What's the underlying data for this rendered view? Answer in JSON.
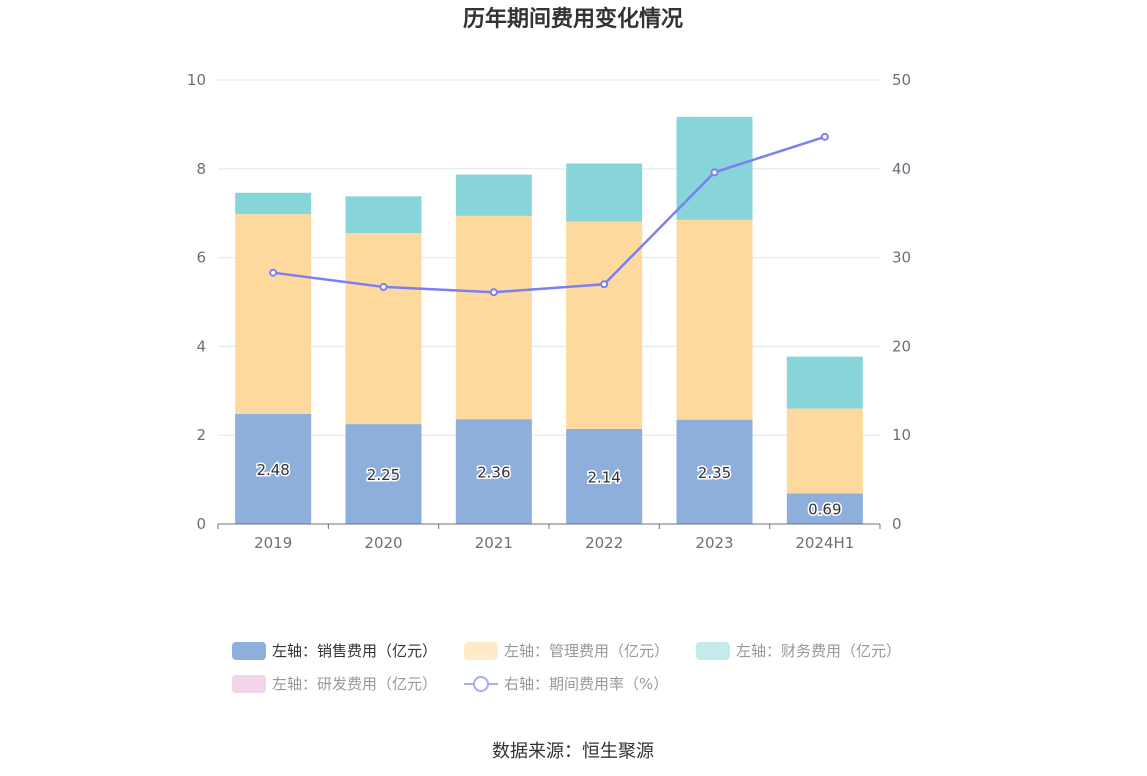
{
  "chart_data": {
    "type": "bar",
    "title": "历年期间费用变化情况",
    "categories": [
      "2019",
      "2020",
      "2021",
      "2022",
      "2023",
      "2024H1"
    ],
    "stacked": true,
    "left_axis": {
      "ylim": [
        0,
        10
      ],
      "ticks": [
        "0",
        "2",
        "4",
        "6",
        "8",
        "10"
      ]
    },
    "right_axis": {
      "ylim": [
        0,
        50
      ],
      "ticks": [
        "0",
        "10",
        "20",
        "30",
        "40",
        "50"
      ]
    },
    "grid": true,
    "legend_position": "bottom",
    "series": [
      {
        "name": "左轴：销售费用（亿元）",
        "axis": "left",
        "type": "bar",
        "color": "#8eaedc",
        "values": [
          2.48,
          2.25,
          2.36,
          2.14,
          2.35,
          0.69
        ],
        "labels": [
          "2.48",
          "2.25",
          "2.36",
          "2.14",
          "2.35",
          "0.69"
        ]
      },
      {
        "name": "左轴：管理费用（亿元）",
        "axis": "left",
        "type": "bar",
        "color": "#fed99e",
        "values": [
          4.5,
          4.3,
          4.58,
          4.67,
          4.5,
          1.91
        ]
      },
      {
        "name": "左轴：财务费用（亿元）",
        "axis": "left",
        "type": "bar",
        "color": "#88d5d9",
        "values": [
          0.48,
          0.83,
          0.93,
          1.31,
          2.32,
          1.17
        ]
      },
      {
        "name": "左轴：研发费用（亿元）",
        "axis": "left",
        "type": "bar",
        "color": "#f2d5eb",
        "values": [
          0,
          0,
          0,
          0,
          0,
          0
        ]
      },
      {
        "name": "右轴：期间费用率（%）",
        "axis": "right",
        "type": "line",
        "color": "#7b7ff0",
        "values": [
          28.3,
          26.7,
          26.1,
          27.0,
          39.6,
          43.6
        ]
      }
    ]
  },
  "source_text": "数据来源：恒生聚源"
}
